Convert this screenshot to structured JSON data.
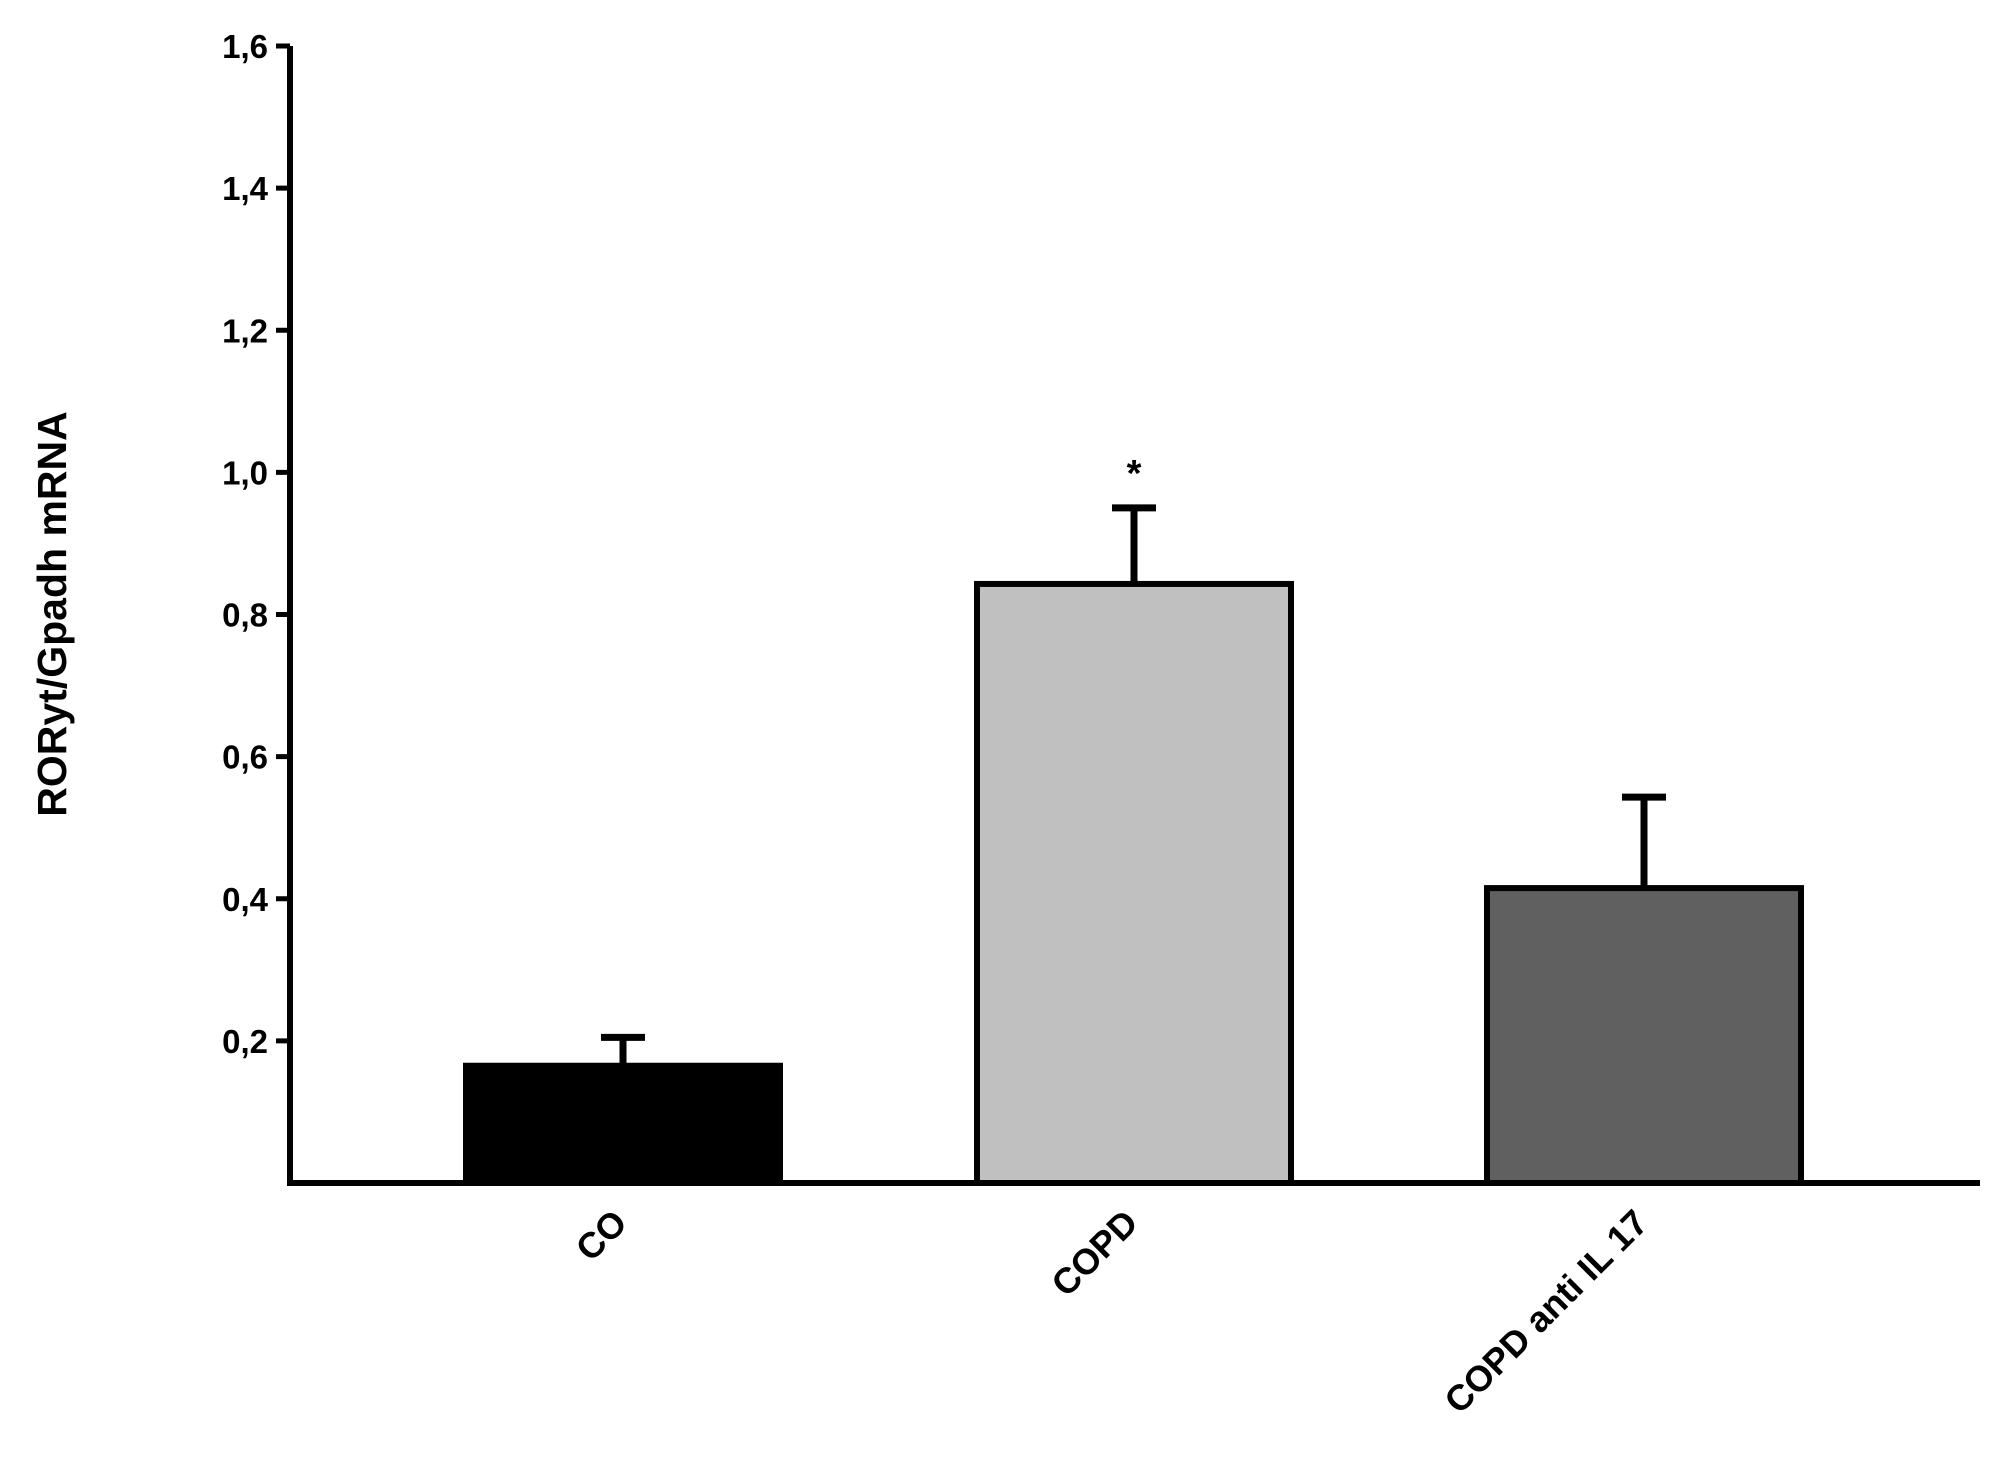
{
  "chart_data": {
    "type": "bar",
    "title": "",
    "xlabel": "",
    "ylabel": "RORyt/Gpadh mRNA",
    "categories": [
      "CO",
      "COPD",
      "COPD anti IL 17"
    ],
    "values": [
      0.165,
      0.843,
      0.415
    ],
    "error_bars": [
      0.04,
      0.107,
      0.128
    ],
    "bar_colors": [
      "#000000",
      "#c0c0c0",
      "#606060"
    ],
    "annotations": [
      "",
      "*",
      ""
    ],
    "ylim": [
      0,
      1.6
    ],
    "yticks": [
      "0,2",
      "0,4",
      "0,6",
      "0,8",
      "1,0",
      "1,2",
      "1,4",
      "1,6"
    ],
    "ytick_values": [
      0.2,
      0.4,
      0.6,
      0.8,
      1.0,
      1.2,
      1.4,
      1.6
    ],
    "grid": false,
    "legend": "none"
  }
}
